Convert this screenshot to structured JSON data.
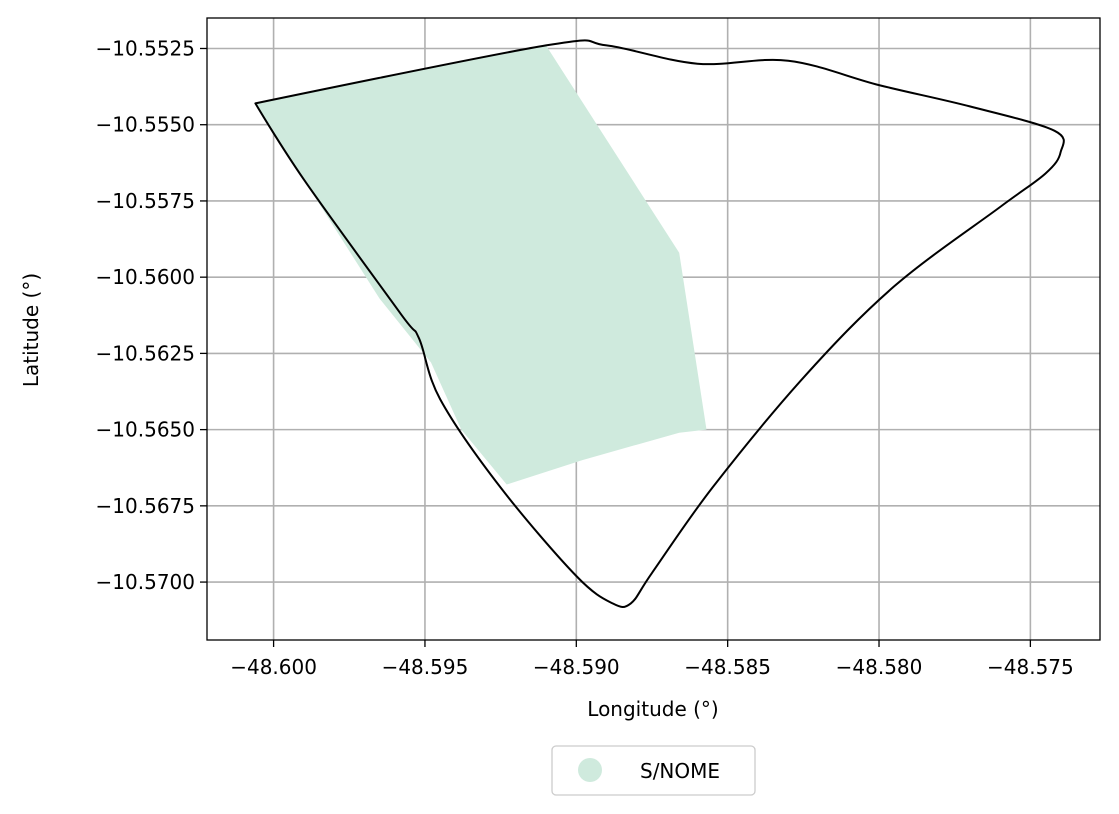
{
  "chart_data": {
    "type": "map",
    "xlabel": "Longitude (°)",
    "ylabel": "Latitude (°)",
    "xlim": [
      -48.6022,
      -48.5727
    ],
    "ylim": [
      -10.5719,
      -10.5515
    ],
    "xticks": [
      -48.6,
      -48.595,
      -48.59,
      -48.585,
      -48.58,
      -48.575
    ],
    "xtick_labels": [
      "−48.600",
      "−48.595",
      "−48.590",
      "−48.585",
      "−48.580",
      "−48.575"
    ],
    "yticks": [
      -10.5525,
      -10.555,
      -10.5575,
      -10.56,
      -10.5625,
      -10.565,
      -10.5675,
      -10.57
    ],
    "ytick_labels": [
      "−10.5525",
      "−10.5550",
      "−10.5575",
      "−10.5600",
      "−10.5625",
      "−10.5650",
      "−10.5675",
      "−10.5700"
    ],
    "grid": true,
    "legend": {
      "placement": "bottom-center",
      "entries": [
        {
          "label": "S/NOME",
          "color": "#cfeadd"
        }
      ]
    },
    "filled_area": {
      "name": "S/NOME",
      "color": "#cfeadd",
      "points": [
        [
          -48.6006,
          -10.5543
        ],
        [
          -48.591,
          -10.5524
        ],
        [
          -48.5866,
          -10.5592
        ],
        [
          -48.5857,
          -10.565
        ],
        [
          -48.5866,
          -10.5651
        ],
        [
          -48.5898,
          -10.566
        ],
        [
          -48.5923,
          -10.5668
        ],
        [
          -48.5938,
          -10.565
        ],
        [
          -48.5948,
          -10.5628
        ],
        [
          -48.5965,
          -10.5607
        ],
        [
          -48.6006,
          -10.5543
        ]
      ]
    },
    "boundary": {
      "color": "#000000",
      "points": [
        [
          -48.6006,
          -10.5543
        ],
        [
          -48.591,
          -10.5524
        ],
        [
          -48.589,
          -10.5524
        ],
        [
          -48.586,
          -10.553
        ],
        [
          -48.583,
          -10.5529
        ],
        [
          -48.58,
          -10.5537
        ],
        [
          -48.577,
          -10.5544
        ],
        [
          -48.5742,
          -10.5552
        ],
        [
          -48.574,
          -10.5559
        ],
        [
          -48.5745,
          -10.5566
        ],
        [
          -48.576,
          -10.5577
        ],
        [
          -48.5795,
          -10.5603
        ],
        [
          -48.5825,
          -10.5633
        ],
        [
          -48.5855,
          -10.5669
        ],
        [
          -48.5875,
          -10.5697
        ],
        [
          -48.5882,
          -10.5707
        ],
        [
          -48.5888,
          -10.5707
        ],
        [
          -48.59,
          -10.5698
        ],
        [
          -48.5925,
          -10.5669
        ],
        [
          -48.5945,
          -10.564
        ],
        [
          -48.5952,
          -10.562
        ],
        [
          -48.5958,
          -10.5612
        ],
        [
          -48.599,
          -10.5568
        ],
        [
          -48.6006,
          -10.5543
        ]
      ]
    }
  }
}
